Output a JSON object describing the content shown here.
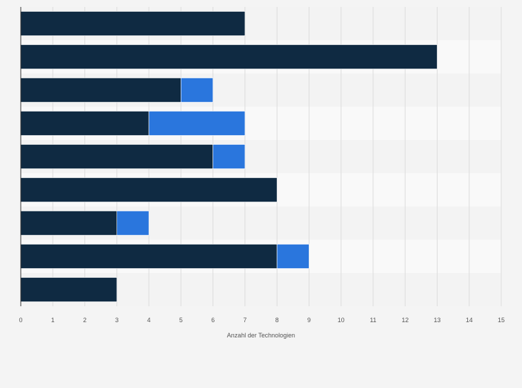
{
  "chart_data": {
    "type": "bar",
    "orientation": "horizontal",
    "stacked": true,
    "title": "",
    "xlabel": "Anzahl der Technologien",
    "ylabel": "",
    "xlim": [
      0,
      15
    ],
    "x_ticks": [
      0,
      1,
      2,
      3,
      4,
      5,
      6,
      7,
      8,
      9,
      10,
      11,
      12,
      13,
      14,
      15
    ],
    "grid": true,
    "legend": "none",
    "categories": [
      "",
      "",
      "",
      "",
      "",
      "",
      "",
      "",
      ""
    ],
    "series": [
      {
        "values": [
          7,
          13,
          5,
          4,
          6,
          8,
          3,
          8,
          3
        ],
        "color": "#0f2a42"
      },
      {
        "values": [
          0,
          0,
          1,
          3,
          1,
          0,
          1,
          1,
          0
        ],
        "color": "#2a76dd"
      }
    ],
    "colors": {
      "background": "#f4f4f4",
      "band_dark": "#f3f3f3",
      "band_light": "#f9f9f9",
      "gridline": "#dcdcdc",
      "axis": "#333333"
    }
  }
}
